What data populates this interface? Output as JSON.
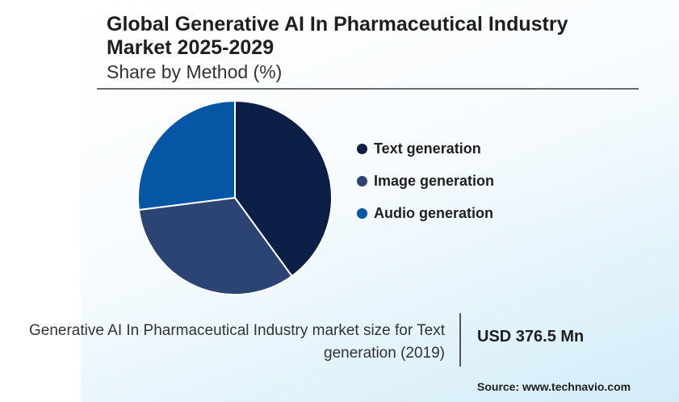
{
  "header": {
    "title": "Global Generative AI In Pharmaceutical Industry Market 2025-2029",
    "subtitle": "Share by Method (%)"
  },
  "chart_data": {
    "type": "pie",
    "title": "Global Generative AI In Pharmaceutical Industry Market 2025-2029",
    "subtitle": "Share by Method (%)",
    "categories": [
      "Text generation",
      "Image generation",
      "Audio generation"
    ],
    "values": [
      40,
      33,
      27
    ],
    "colors": [
      "#0c1f47",
      "#2b4474",
      "#0557a6"
    ],
    "legend_position": "right"
  },
  "legend": {
    "items": [
      {
        "label": "Text generation",
        "color": "#0c1f47"
      },
      {
        "label": "Image generation",
        "color": "#2b4474"
      },
      {
        "label": "Audio generation",
        "color": "#0557a6"
      }
    ]
  },
  "footer": {
    "market_size_text": "Generative AI In Pharmaceutical Industry market size for Text generation (2019)",
    "market_size_value": "USD 376.5 Mn",
    "source": "Source: www.technavio.com"
  }
}
